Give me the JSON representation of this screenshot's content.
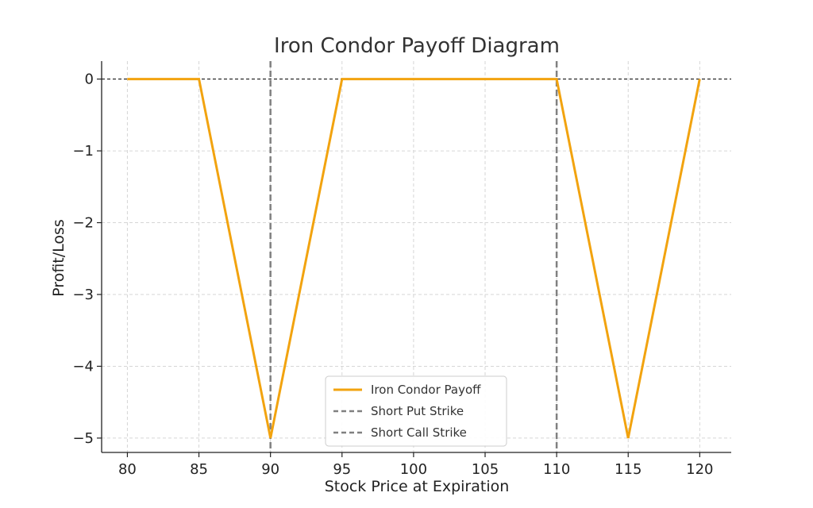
{
  "chart_data": {
    "type": "line",
    "title": "Iron Condor Payoff Diagram",
    "xlabel": "Stock Price at Expiration",
    "ylabel": "Profit/Loss",
    "xlim": [
      78.2,
      122.2
    ],
    "ylim": [
      -5.2,
      0.25
    ],
    "x_ticks": [
      80,
      85,
      90,
      95,
      100,
      105,
      110,
      115,
      120
    ],
    "x_tick_labels": [
      "80",
      "85",
      "90",
      "95",
      "100",
      "105",
      "110",
      "115",
      "120"
    ],
    "y_ticks": [
      0,
      -1,
      -2,
      -3,
      -4,
      -5
    ],
    "y_tick_labels": [
      "0",
      "−1",
      "−2",
      "−3",
      "−4",
      "−5"
    ],
    "grid": true,
    "zero_line": 0,
    "series": [
      {
        "name": "Iron Condor Payoff",
        "color": "#f2a30f",
        "style": "solid",
        "x": [
          80,
          85,
          90,
          95,
          110,
          115,
          120
        ],
        "y": [
          0,
          0,
          -5,
          0,
          0,
          -5,
          0
        ]
      }
    ],
    "vlines": [
      {
        "name": "Short Put Strike",
        "x": 90,
        "color": "#808080",
        "style": "dashed"
      },
      {
        "name": "Short Call Strike",
        "x": 110,
        "color": "#808080",
        "style": "dashed"
      }
    ],
    "legend": {
      "position": "lower-center",
      "entries": [
        "Iron Condor Payoff",
        "Short Put Strike",
        "Short Call Strike"
      ]
    }
  }
}
